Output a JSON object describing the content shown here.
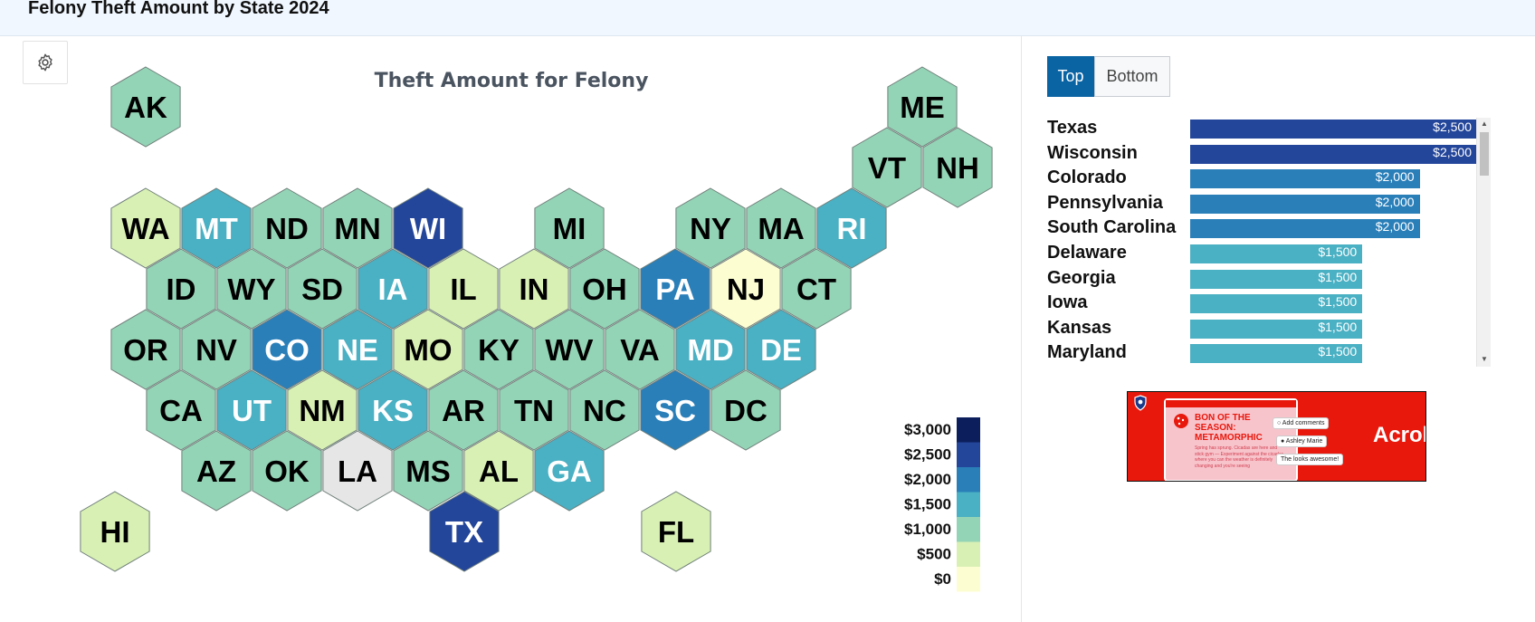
{
  "page": {
    "title": "Felony Theft Amount by State 2024"
  },
  "map": {
    "title": "Theft Amount for Felony",
    "settings_icon": "gear-icon",
    "states": [
      {
        "abbr": "AK",
        "value": 1000
      },
      {
        "abbr": "ME",
        "value": 1000
      },
      {
        "abbr": "VT",
        "value": 1000
      },
      {
        "abbr": "NH",
        "value": 1000
      },
      {
        "abbr": "WA",
        "value": 750
      },
      {
        "abbr": "MT",
        "value": 1500
      },
      {
        "abbr": "ND",
        "value": 1000
      },
      {
        "abbr": "MN",
        "value": 1000
      },
      {
        "abbr": "WI",
        "value": 2500
      },
      {
        "abbr": "MI",
        "value": 1000
      },
      {
        "abbr": "NY",
        "value": 1000
      },
      {
        "abbr": "MA",
        "value": 1200
      },
      {
        "abbr": "RI",
        "value": 1500
      },
      {
        "abbr": "ID",
        "value": 1000
      },
      {
        "abbr": "WY",
        "value": 1000
      },
      {
        "abbr": "SD",
        "value": 1000
      },
      {
        "abbr": "IA",
        "value": 1500
      },
      {
        "abbr": "IL",
        "value": 500
      },
      {
        "abbr": "IN",
        "value": 750
      },
      {
        "abbr": "OH",
        "value": 1000
      },
      {
        "abbr": "PA",
        "value": 2000
      },
      {
        "abbr": "NJ",
        "value": 200
      },
      {
        "abbr": "CT",
        "value": 1000
      },
      {
        "abbr": "OR",
        "value": 1000
      },
      {
        "abbr": "NV",
        "value": 1200
      },
      {
        "abbr": "CO",
        "value": 2000
      },
      {
        "abbr": "NE",
        "value": 1500
      },
      {
        "abbr": "MO",
        "value": 750
      },
      {
        "abbr": "KY",
        "value": 1000
      },
      {
        "abbr": "WV",
        "value": 1000
      },
      {
        "abbr": "VA",
        "value": 1000
      },
      {
        "abbr": "MD",
        "value": 1500
      },
      {
        "abbr": "DE",
        "value": 1500
      },
      {
        "abbr": "CA",
        "value": 1000
      },
      {
        "abbr": "UT",
        "value": 1500
      },
      {
        "abbr": "NM",
        "value": 500
      },
      {
        "abbr": "KS",
        "value": 1500
      },
      {
        "abbr": "AR",
        "value": 1000
      },
      {
        "abbr": "TN",
        "value": 1000
      },
      {
        "abbr": "NC",
        "value": 1000
      },
      {
        "abbr": "SC",
        "value": 2000
      },
      {
        "abbr": "DC",
        "value": 1000
      },
      {
        "abbr": "AZ",
        "value": 1000
      },
      {
        "abbr": "OK",
        "value": 1000
      },
      {
        "abbr": "LA",
        "value": null
      },
      {
        "abbr": "MS",
        "value": 1000
      },
      {
        "abbr": "AL",
        "value": 500
      },
      {
        "abbr": "GA",
        "value": 1500
      },
      {
        "abbr": "HI",
        "value": 750
      },
      {
        "abbr": "TX",
        "value": 2500
      },
      {
        "abbr": "FL",
        "value": 750
      }
    ],
    "no_data_color": "#e6e6e6",
    "legend": {
      "labels": [
        "$3,000",
        "$2,500",
        "$2,000",
        "$1,500",
        "$1,000",
        "$500",
        "$0"
      ],
      "colors": [
        "#0c1f5c",
        "#23459a",
        "#2a7fb9",
        "#4ab0c3",
        "#94d4b6",
        "#d9f0b4",
        "#fcfed2"
      ]
    }
  },
  "ranking": {
    "top_label": "Top",
    "bottom_label": "Bottom",
    "active": "top",
    "max_value": 2500,
    "items": [
      {
        "state": "Texas",
        "value": 2500,
        "value_label": "$2,500",
        "color": "#23459a"
      },
      {
        "state": "Wisconsin",
        "value": 2500,
        "value_label": "$2,500",
        "color": "#23459a"
      },
      {
        "state": "Colorado",
        "value": 2000,
        "value_label": "$2,000",
        "color": "#2a7fb9"
      },
      {
        "state": "Pennsylvania",
        "value": 2000,
        "value_label": "$2,000",
        "color": "#2a7fb9"
      },
      {
        "state": "South Carolina",
        "value": 2000,
        "value_label": "$2,000",
        "color": "#2a7fb9"
      },
      {
        "state": "Delaware",
        "value": 1500,
        "value_label": "$1,500",
        "color": "#4ab0c3"
      },
      {
        "state": "Georgia",
        "value": 1500,
        "value_label": "$1,500",
        "color": "#4ab0c3"
      },
      {
        "state": "Iowa",
        "value": 1500,
        "value_label": "$1,500",
        "color": "#4ab0c3"
      },
      {
        "state": "Kansas",
        "value": 1500,
        "value_label": "$1,500",
        "color": "#4ab0c3"
      },
      {
        "state": "Maryland",
        "value": 1500,
        "value_label": "$1,500",
        "color": "#4ab0c3"
      }
    ]
  },
  "ad": {
    "headline": "BON OF THE SEASON: METAMORPHIC",
    "body": "Spring has sprung. Cicadas are here and stick gym — Experiment against the cicadas where you can the weather is definitely changing and you're seeing",
    "bubble_1": "Add comments",
    "bubble_2": "Ashley Marie",
    "bubble_3": "The looks awesome!",
    "brand": "Acrob"
  }
}
